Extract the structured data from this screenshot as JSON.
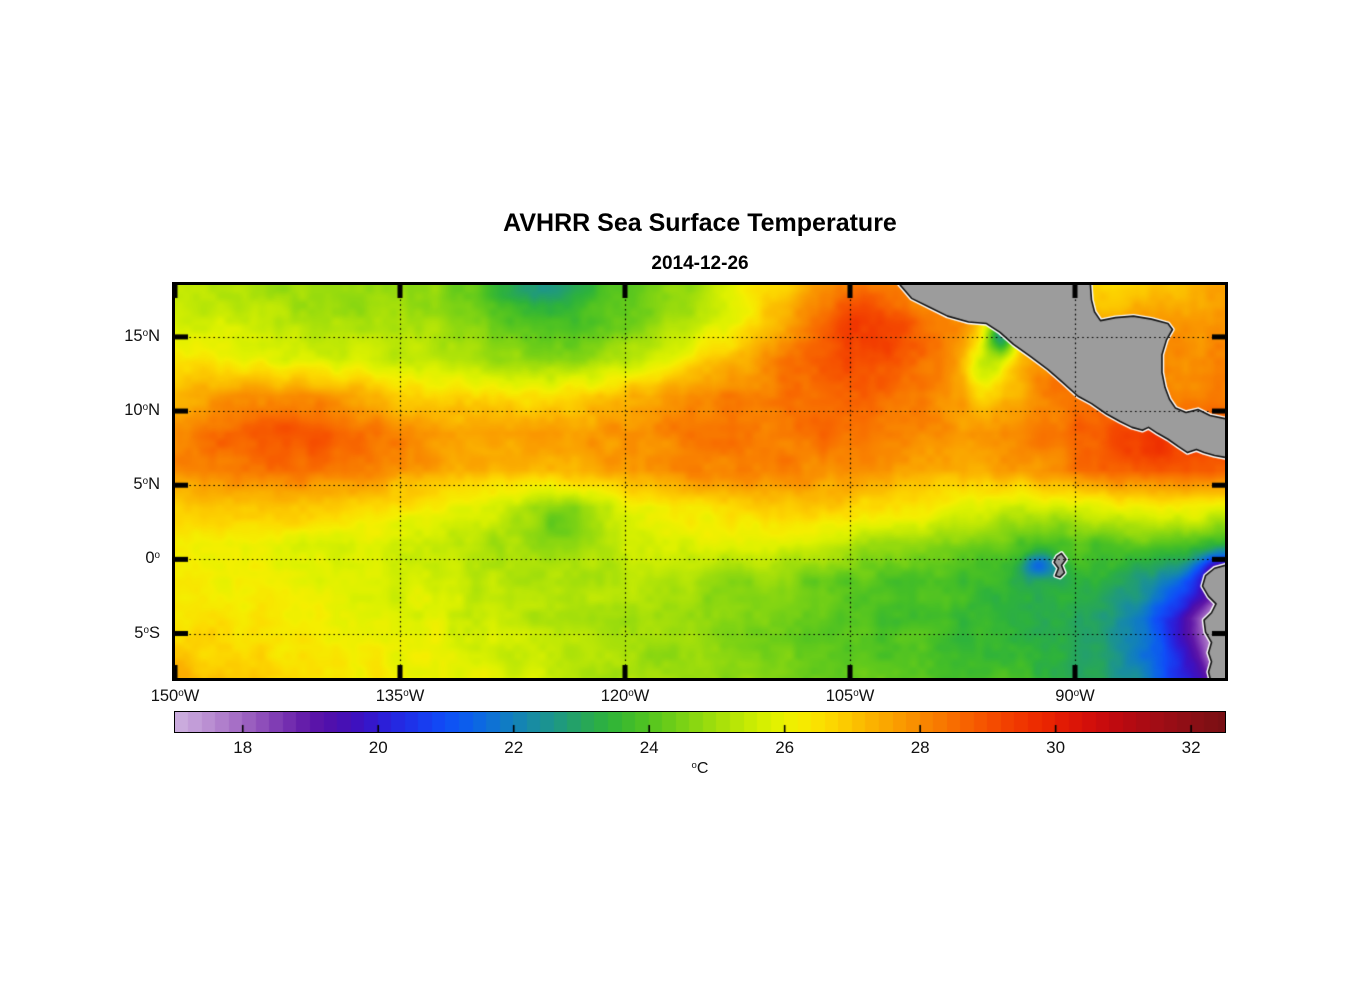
{
  "title": "AVHRR Sea Surface Temperature",
  "subtitle": "2014-12-26",
  "colors": {
    "background": "#ffffff",
    "land_fill": "#9c9c9c",
    "coast_outline": "#111111",
    "coast_halo": "#ffffff",
    "frame": "#000000",
    "grid_dots": "#000000"
  },
  "axes": {
    "lon_min": -150,
    "lon_max": -80,
    "lat_min": -8,
    "lat_max": 18.5,
    "grid_lons": [
      -135,
      -120,
      -105,
      -90
    ],
    "grid_lats": [
      15,
      10,
      5,
      0,
      -5
    ],
    "lon_ticks": [
      {
        "num": "150",
        "deg": "o",
        "dir": "W",
        "value": -150
      },
      {
        "num": "135",
        "deg": "o",
        "dir": "W",
        "value": -135
      },
      {
        "num": "120",
        "deg": "o",
        "dir": "W",
        "value": -120
      },
      {
        "num": "105",
        "deg": "o",
        "dir": "W",
        "value": -105
      },
      {
        "num": "90",
        "deg": "o",
        "dir": "W",
        "value": -90
      }
    ],
    "lat_ticks": [
      {
        "num": "15",
        "deg": "o",
        "dir": "N",
        "value": 15
      },
      {
        "num": "10",
        "deg": "o",
        "dir": "N",
        "value": 10
      },
      {
        "num": "5",
        "deg": "o",
        "dir": "N",
        "value": 5
      },
      {
        "num": "0",
        "deg": "o",
        "dir": "",
        "value": 0
      },
      {
        "num": "5",
        "deg": "o",
        "dir": "S",
        "value": -5
      }
    ]
  },
  "colorbar": {
    "min": 17,
    "max": 32.5,
    "segment_step": 0.2,
    "tick_values": [
      18,
      20,
      22,
      24,
      26,
      28,
      30,
      32
    ],
    "tick_labels": [
      "18",
      "20",
      "22",
      "24",
      "26",
      "28",
      "30",
      "32"
    ],
    "unit_deg": "o",
    "unit": "C"
  },
  "colormap": [
    [
      17.0,
      "#cfb2e0"
    ],
    [
      17.4,
      "#bf97d6"
    ],
    [
      17.8,
      "#ac78c9"
    ],
    [
      18.2,
      "#9557bd"
    ],
    [
      18.6,
      "#7a35b2"
    ],
    [
      19.0,
      "#5f17a8"
    ],
    [
      19.4,
      "#4c0fae"
    ],
    [
      19.8,
      "#3a13c6"
    ],
    [
      20.2,
      "#2824de"
    ],
    [
      20.6,
      "#1b38ee"
    ],
    [
      21.0,
      "#104ef8"
    ],
    [
      21.4,
      "#0c63ea"
    ],
    [
      21.8,
      "#0f78cd"
    ],
    [
      22.2,
      "#1689ab"
    ],
    [
      22.6,
      "#1e9789"
    ],
    [
      23.0,
      "#26a55f"
    ],
    [
      23.4,
      "#2eb33c"
    ],
    [
      23.8,
      "#45bf27"
    ],
    [
      24.2,
      "#62ca1c"
    ],
    [
      24.6,
      "#83d513"
    ],
    [
      25.0,
      "#a3df0b"
    ],
    [
      25.4,
      "#c1e905"
    ],
    [
      25.8,
      "#def200"
    ],
    [
      26.2,
      "#f5ef00"
    ],
    [
      26.6,
      "#fcdd00"
    ],
    [
      27.0,
      "#fcc500"
    ],
    [
      27.4,
      "#fbad00"
    ],
    [
      27.8,
      "#fa9600"
    ],
    [
      28.2,
      "#f97f00"
    ],
    [
      28.6,
      "#f86800"
    ],
    [
      29.0,
      "#f65100"
    ],
    [
      29.4,
      "#f23b00"
    ],
    [
      29.8,
      "#ec2800"
    ],
    [
      30.2,
      "#e01806"
    ],
    [
      30.6,
      "#cf0d0c"
    ],
    [
      31.0,
      "#ba0a11"
    ],
    [
      31.5,
      "#a20d15"
    ],
    [
      32.0,
      "#8c0f16"
    ],
    [
      32.5,
      "#790f14"
    ]
  ],
  "chart_data": {
    "type": "heatmap",
    "title": "AVHRR Sea Surface Temperature",
    "subtitle": "2014-12-26",
    "units": "°C",
    "value_range": [
      17,
      32.5
    ],
    "lons": [
      -150,
      -147.5,
      -145,
      -142.5,
      -140,
      -137.5,
      -135,
      -132.5,
      -130,
      -127.5,
      -125,
      -122.5,
      -120,
      -117.5,
      -115,
      -112.5,
      -110,
      -107.5,
      -105,
      -102.5,
      -100,
      -97.5,
      -95,
      -92.5,
      -90,
      -87.5,
      -85,
      -82.5,
      -80
    ],
    "lats": [
      18.5,
      16,
      13.5,
      11,
      8.5,
      6,
      3.5,
      1,
      -1.5,
      -4,
      -6.5,
      -8
    ],
    "sst": [
      [
        25.4,
        25.2,
        25.0,
        24.9,
        24.8,
        24.7,
        24.9,
        24.6,
        24.2,
        23.8,
        23.6,
        23.6,
        24.0,
        24.4,
        25.0,
        25.8,
        26.6,
        27.6,
        28.2,
        28.0,
        27.6,
        27.2,
        27.0,
        26.9,
        26.7,
        26.5,
        26.8,
        27.2,
        27.4
      ],
      [
        25.8,
        25.6,
        25.4,
        25.2,
        25.1,
        25.0,
        25.2,
        24.9,
        24.5,
        24.1,
        23.9,
        24.0,
        24.3,
        24.8,
        25.4,
        26.2,
        27.2,
        28.2,
        28.8,
        28.6,
        28.2,
        27.8,
        27.0,
        27.2,
        27.5,
        27.7,
        27.8,
        27.8,
        27.8
      ],
      [
        26.4,
        26.2,
        26.0,
        25.8,
        25.7,
        25.6,
        25.5,
        25.3,
        25.0,
        24.8,
        24.6,
        24.8,
        25.2,
        25.8,
        26.5,
        27.3,
        28.2,
        28.8,
        29.0,
        28.8,
        28.4,
        27.6,
        26.9,
        27.9,
        28.2,
        28.2,
        28.0,
        28.0,
        28.0
      ],
      [
        27.2,
        27.6,
        27.8,
        28.0,
        27.8,
        27.4,
        27.0,
        26.8,
        26.6,
        26.5,
        26.6,
        26.8,
        27.2,
        27.6,
        28.0,
        28.2,
        28.3,
        28.6,
        28.8,
        28.6,
        28.2,
        27.5,
        27.0,
        28.0,
        28.4,
        28.6,
        28.3,
        28.2,
        28.2
      ],
      [
        28.0,
        28.3,
        28.5,
        28.6,
        28.4,
        28.2,
        27.9,
        27.7,
        27.6,
        27.5,
        27.6,
        27.7,
        27.9,
        28.1,
        28.3,
        28.4,
        28.3,
        28.4,
        28.5,
        28.3,
        28.0,
        27.8,
        27.9,
        28.2,
        28.6,
        28.8,
        29.0,
        29.2,
        29.0
      ],
      [
        27.9,
        28.1,
        28.3,
        28.4,
        28.2,
        28.0,
        27.7,
        27.5,
        27.3,
        27.2,
        27.3,
        27.5,
        27.7,
        27.9,
        28.1,
        28.2,
        28.1,
        28.0,
        27.9,
        27.7,
        27.5,
        27.4,
        27.6,
        27.9,
        28.2,
        28.5,
        28.8,
        29.0,
        28.8
      ],
      [
        26.9,
        27.0,
        27.1,
        27.0,
        26.8,
        26.6,
        26.4,
        26.2,
        25.8,
        25.5,
        25.3,
        25.5,
        25.9,
        26.2,
        26.5,
        26.7,
        26.8,
        26.9,
        26.8,
        26.6,
        26.3,
        26.0,
        25.7,
        25.5,
        25.6,
        26.0,
        26.3,
        26.3,
        26.0
      ],
      [
        26.2,
        26.1,
        26.0,
        25.9,
        25.8,
        25.7,
        25.6,
        25.4,
        25.2,
        25.0,
        25.0,
        25.2,
        25.5,
        25.7,
        25.8,
        25.8,
        25.7,
        25.5,
        25.2,
        25.0,
        24.8,
        24.5,
        24.2,
        23.9,
        23.9,
        24.0,
        24.2,
        24.0,
        23.6
      ],
      [
        26.3,
        26.2,
        26.1,
        26.0,
        25.9,
        25.8,
        25.7,
        25.6,
        25.4,
        25.2,
        25.1,
        25.2,
        25.3,
        25.2,
        25.0,
        24.8,
        24.6,
        24.4,
        24.2,
        24.0,
        23.9,
        23.7,
        23.4,
        23.3,
        23.4,
        23.2,
        22.6,
        21.2,
        19.8
      ],
      [
        26.6,
        26.5,
        26.4,
        26.2,
        26.1,
        26.0,
        25.9,
        25.8,
        25.6,
        25.4,
        25.2,
        25.1,
        25.0,
        24.9,
        24.8,
        24.6,
        24.4,
        24.2,
        24.0,
        23.9,
        23.8,
        23.6,
        23.4,
        23.2,
        23.0,
        22.5,
        21.4,
        19.4,
        18.0
      ],
      [
        27.0,
        26.8,
        26.6,
        26.4,
        26.3,
        26.2,
        26.1,
        26.0,
        25.8,
        25.6,
        25.4,
        25.2,
        25.0,
        24.9,
        24.8,
        24.6,
        24.5,
        24.3,
        24.1,
        24.0,
        23.9,
        23.8,
        23.6,
        23.4,
        23.1,
        22.6,
        21.6,
        19.8,
        18.4
      ],
      [
        27.4,
        27.2,
        26.9,
        26.6,
        26.4,
        26.3,
        26.2,
        26.1,
        25.9,
        25.7,
        25.5,
        25.3,
        25.1,
        25.0,
        24.9,
        24.7,
        24.6,
        24.4,
        24.2,
        24.1,
        24.0,
        23.9,
        23.8,
        23.6,
        23.3,
        22.8,
        21.9,
        20.2,
        18.8
      ]
    ],
    "features": [
      {
        "name": "tehuantepec-cool-core",
        "lon": -94.9,
        "lat": 15.2,
        "slon": 0.75,
        "slat": 1.0,
        "delta": -4.2
      },
      {
        "name": "tehuantepec-cool-tail",
        "lon": -96.2,
        "lat": 12.9,
        "slon": 0.9,
        "slat": 1.3,
        "delta": -1.6
      },
      {
        "name": "north-green-patch",
        "lon": -125.8,
        "lat": 18.2,
        "slon": 2.0,
        "slat": 1.2,
        "delta": -0.9
      },
      {
        "name": "equatorial-green-dip",
        "lon": -124.0,
        "lat": 2.6,
        "slon": 1.8,
        "slat": 1.4,
        "delta": -0.9
      },
      {
        "name": "galapagos-cold-wake",
        "lon": -92.4,
        "lat": -0.4,
        "slon": 0.9,
        "slat": 0.55,
        "delta": -2.0
      },
      {
        "name": "ecuador-coastal-cold",
        "lon": -80.5,
        "lat": -0.8,
        "slon": 0.8,
        "slat": 0.8,
        "delta": -2.3
      },
      {
        "name": "peru-coastal-cold",
        "lon": -80.2,
        "lat": -5.2,
        "slon": 1.0,
        "slat": 2.2,
        "delta": -1.8
      },
      {
        "name": "mexico-warm-pool",
        "lon": -103.5,
        "lat": 15.8,
        "slon": 2.5,
        "slat": 1.6,
        "delta": 0.7
      },
      {
        "name": "west-warm-band",
        "lon": -141.0,
        "lat": 8.2,
        "slon": 4.0,
        "slat": 1.5,
        "delta": 0.5
      },
      {
        "name": "costa-rica-warm",
        "lon": -85.5,
        "lat": 7.6,
        "slon": 2.0,
        "slat": 1.0,
        "delta": 0.6
      }
    ],
    "land_polygons": {
      "central_america": [
        [
          -102.0,
          18.9
        ],
        [
          -100.9,
          17.6
        ],
        [
          -99.7,
          17.0
        ],
        [
          -98.5,
          16.4
        ],
        [
          -97.1,
          16.0
        ],
        [
          -95.9,
          15.9
        ],
        [
          -95.0,
          15.3
        ],
        [
          -94.1,
          14.5
        ],
        [
          -93.0,
          13.7
        ],
        [
          -91.8,
          12.8
        ],
        [
          -90.9,
          12.0
        ],
        [
          -89.8,
          11.0
        ],
        [
          -88.9,
          10.5
        ],
        [
          -87.9,
          9.8
        ],
        [
          -87.0,
          9.3
        ],
        [
          -86.2,
          8.9
        ],
        [
          -85.5,
          8.7
        ],
        [
          -85.1,
          8.9
        ],
        [
          -84.5,
          8.5
        ],
        [
          -83.8,
          8.1
        ],
        [
          -83.1,
          7.6
        ],
        [
          -82.5,
          7.2
        ],
        [
          -81.9,
          7.4
        ],
        [
          -81.4,
          7.2
        ],
        [
          -80.7,
          7.0
        ],
        [
          -79.6,
          6.8
        ],
        [
          -79.6,
          9.4
        ],
        [
          -81.0,
          9.7
        ],
        [
          -81.8,
          10.1
        ],
        [
          -82.6,
          9.9
        ],
        [
          -83.3,
          10.2
        ],
        [
          -83.7,
          10.8
        ],
        [
          -84.0,
          11.6
        ],
        [
          -84.2,
          12.6
        ],
        [
          -84.2,
          13.8
        ],
        [
          -83.9,
          14.8
        ],
        [
          -83.5,
          15.5
        ],
        [
          -83.8,
          15.9
        ],
        [
          -84.9,
          16.2
        ],
        [
          -86.1,
          16.4
        ],
        [
          -87.3,
          16.3
        ],
        [
          -88.3,
          16.1
        ],
        [
          -88.7,
          16.7
        ],
        [
          -88.9,
          17.5
        ],
        [
          -89.0,
          18.9
        ]
      ],
      "south_america": [
        [
          -79.6,
          -0.3
        ],
        [
          -80.7,
          -0.6
        ],
        [
          -81.3,
          -1.1
        ],
        [
          -81.5,
          -1.8
        ],
        [
          -81.1,
          -2.5
        ],
        [
          -80.6,
          -3.0
        ],
        [
          -80.9,
          -3.6
        ],
        [
          -81.4,
          -4.1
        ],
        [
          -81.3,
          -4.9
        ],
        [
          -80.9,
          -5.6
        ],
        [
          -81.1,
          -6.3
        ],
        [
          -80.9,
          -6.9
        ],
        [
          -81.1,
          -7.6
        ],
        [
          -80.9,
          -8.4
        ],
        [
          -79.6,
          -8.4
        ]
      ],
      "galapagos": [
        [
          -90.9,
          0.4
        ],
        [
          -90.6,
          0.0
        ],
        [
          -90.9,
          -0.4
        ],
        [
          -90.7,
          -0.9
        ],
        [
          -91.0,
          -1.2
        ],
        [
          -91.3,
          -1.1
        ],
        [
          -91.1,
          -0.6
        ],
        [
          -91.4,
          -0.2
        ],
        [
          -91.2,
          0.2
        ]
      ]
    }
  }
}
